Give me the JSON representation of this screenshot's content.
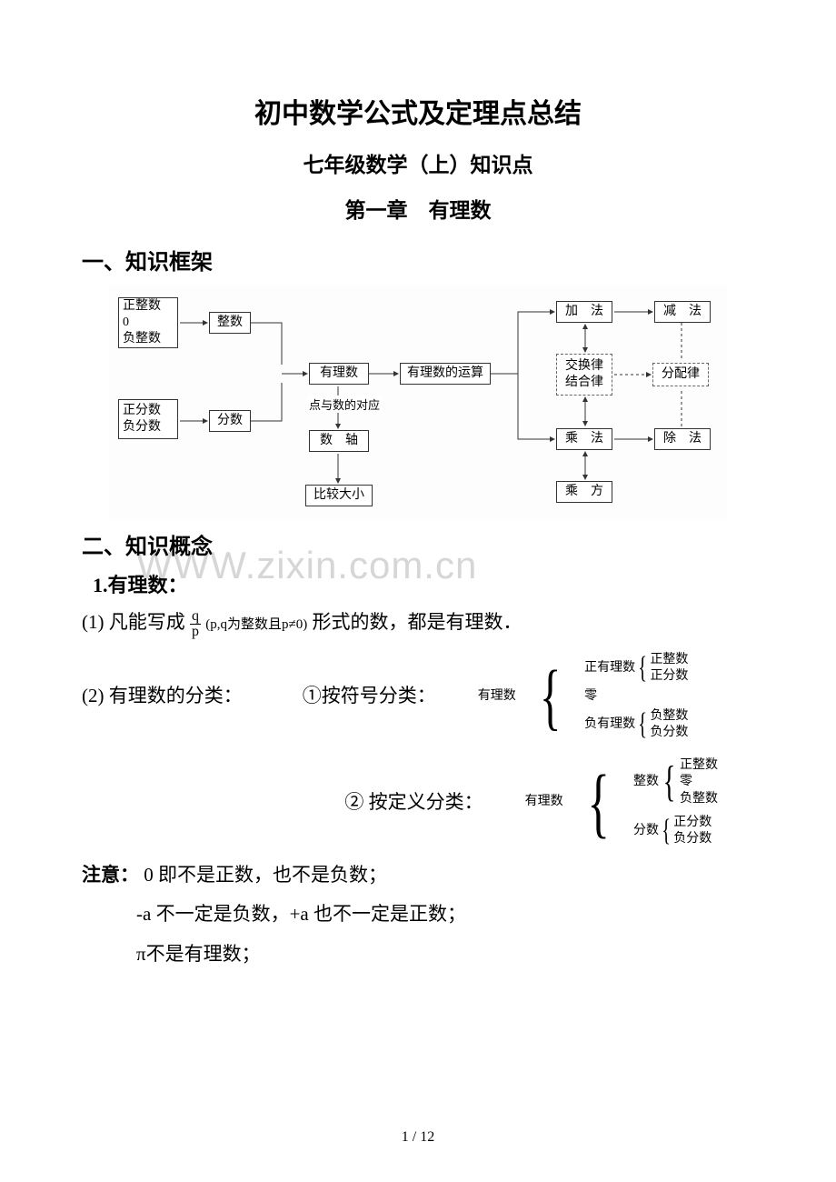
{
  "title_main": "初中数学公式及定理点总结",
  "title_sub": "七年级数学（上）知识点",
  "title_chapter": "第一章　有理数",
  "section1": "一、知识框架",
  "section2": "二、知识概念",
  "sub_1": "1.有理数：",
  "line_1_pre": "(1) 凡能写成",
  "line_1_post": "形式的数，都是有理数．",
  "frac_q": "q",
  "frac_p": "p",
  "frac_cond": "(p,q为整数且p≠0)",
  "line_2": "(2) 有理数的分类：",
  "class_label_1": "①按符号分类：",
  "class_label_2": "② 按定义分类：",
  "cls_root": "有理数",
  "cls1_a": "正有理数",
  "cls1_a1": "正整数",
  "cls1_a2": "正分数",
  "cls1_b": "零",
  "cls1_c": "负有理数",
  "cls1_c1": "负整数",
  "cls1_c2": "负分数",
  "cls2_a": "整数",
  "cls2_a1": "正整数",
  "cls2_a2": "零",
  "cls2_a3": "负整数",
  "cls2_b": "分数",
  "cls2_b1": "正分数",
  "cls2_b2": "负分数",
  "note_label": "注意：",
  "note_1": "0 即不是正数，也不是负数；",
  "note_2": "-a 不一定是负数，+a 也不一定是正数；",
  "note_3": "π不是有理数；",
  "pagenum": "1 / 12",
  "watermark": "WWW.zixin.com.cn",
  "flow": {
    "b1": "正整数\n0\n负整数",
    "b2": "整数",
    "b3": "正分数\n负分数",
    "b4": "分数",
    "b5": "有理数",
    "b6": "有理数的运算",
    "b7": "数　轴",
    "b8": "比较大小",
    "t_corr": "点与数的对应",
    "b9": "加　法",
    "b10": "减　法",
    "b11": "交换律\n结合律",
    "b12": "分配律",
    "b13": "乘　法",
    "b14": "除　法",
    "b15": "乘　方"
  }
}
